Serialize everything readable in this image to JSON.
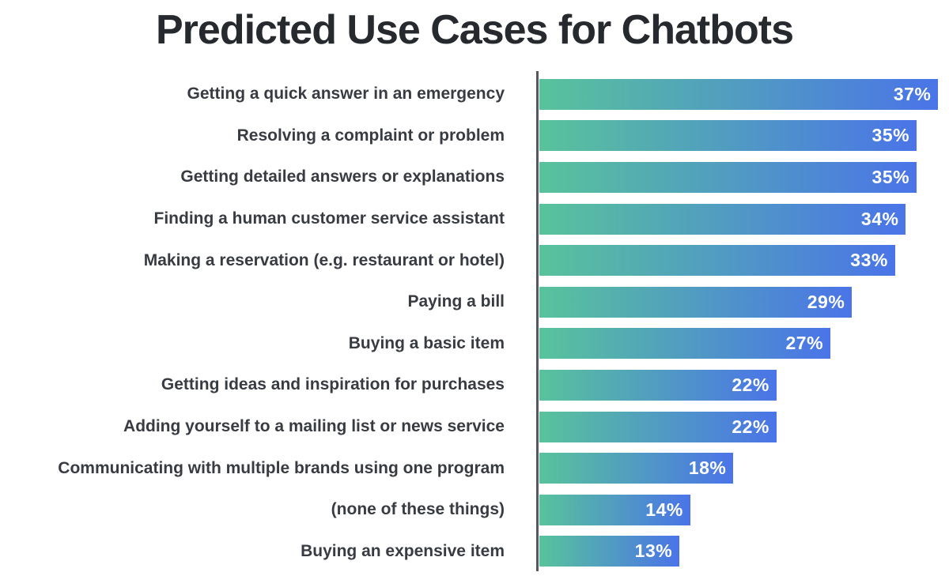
{
  "page": {
    "background": "#ffffff"
  },
  "chart_data": {
    "type": "bar",
    "orientation": "horizontal",
    "title": "Predicted Use Cases for Chatbots",
    "categories": [
      "Getting a quick answer in an emergency",
      "Resolving a complaint or problem",
      "Getting detailed answers or explanations",
      "Finding a human customer service assistant",
      "Making a reservation (e.g. restaurant or hotel)",
      "Paying a bill",
      "Buying a basic item",
      "Getting ideas and inspiration for purchases",
      "Adding yourself to a mailing list or news service",
      "Communicating with multiple brands using one program",
      "(none of these things)",
      "Buying an expensive item"
    ],
    "values": [
      37,
      35,
      35,
      34,
      33,
      29,
      27,
      22,
      22,
      18,
      14,
      13
    ],
    "value_suffix": "%",
    "xlabel": "",
    "ylabel": "",
    "xlim": [
      0,
      38
    ],
    "grid": false,
    "legend": null,
    "colors": {
      "bar_gradient_start": "#58C39B",
      "bar_gradient_end": "#4A74E8",
      "value_label": "#FFFFFF",
      "category_label": "#383C42",
      "title": "#26292D",
      "axis_line": "#55585C"
    }
  }
}
